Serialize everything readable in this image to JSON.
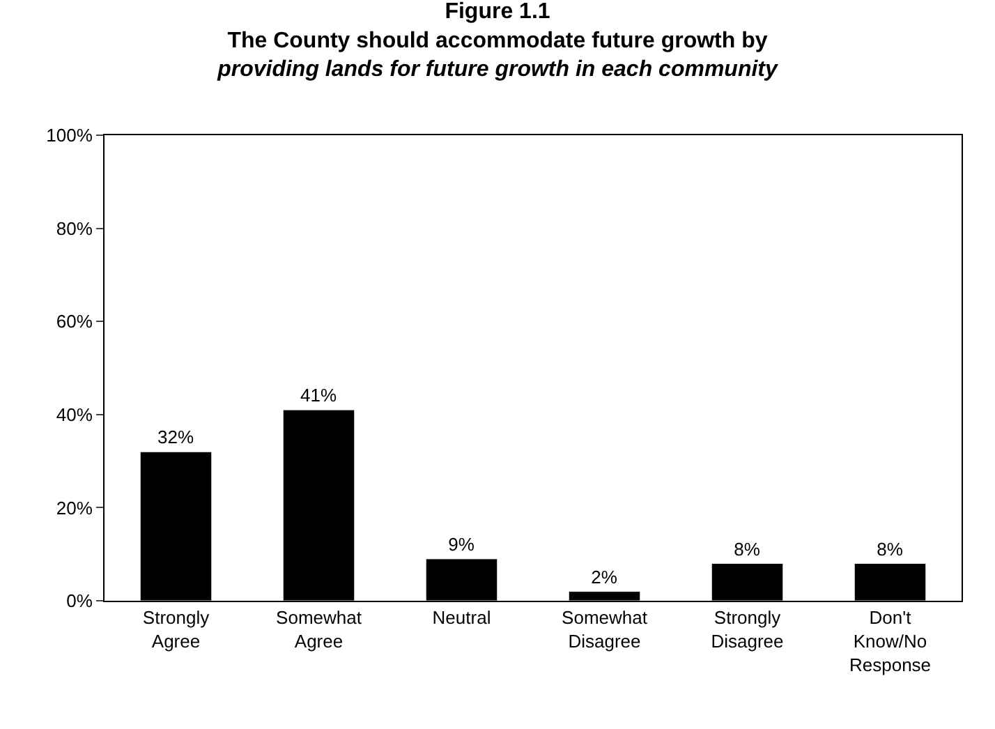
{
  "chart_data": {
    "type": "bar",
    "title": "Figure 1.1\nThe County should accommodate future growth by",
    "subtitle": "providing lands for future growth in each community",
    "categories": [
      "Strongly\nAgree",
      "Somewhat\nAgree",
      "Neutral",
      "Somewhat\nDisagree",
      "Strongly\nDisagree",
      "Don't\nKnow/No\nResponse"
    ],
    "values": [
      32,
      41,
      9,
      2,
      8,
      8
    ],
    "color": "#000000",
    "data_labels": true,
    "value_labels": [
      "32%",
      "41%",
      "9%",
      "2%",
      "8%",
      "8%"
    ],
    "ylim": [
      0,
      100
    ],
    "yticks": [
      {
        "value": 0,
        "label": "0%"
      },
      {
        "value": 20,
        "label": "20%"
      },
      {
        "value": 40,
        "label": "40%"
      },
      {
        "value": 60,
        "label": "60%"
      },
      {
        "value": 80,
        "label": "80%"
      },
      {
        "value": 100,
        "label": "100%"
      }
    ],
    "ylabel": null
  }
}
